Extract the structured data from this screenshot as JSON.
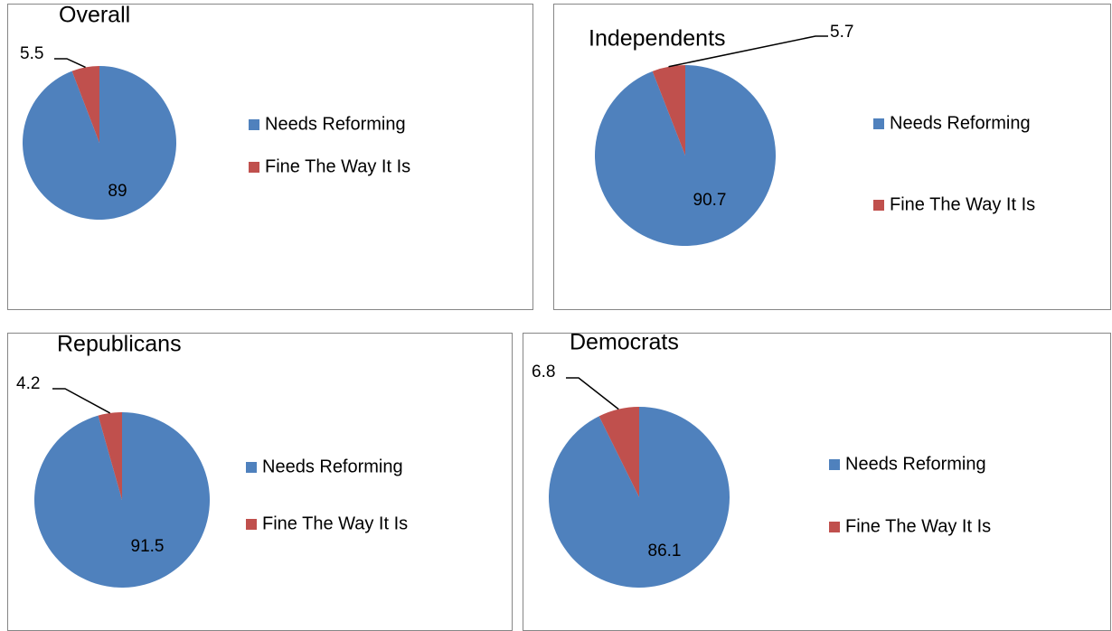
{
  "chart_data": [
    {
      "type": "pie",
      "title": "Overall",
      "categories": [
        "Needs Reforming",
        "Fine The Way It Is"
      ],
      "values": [
        89,
        5.5
      ],
      "colors": [
        "#4f81bd",
        "#c0504d"
      ]
    },
    {
      "type": "pie",
      "title": "Independents",
      "categories": [
        "Needs Reforming",
        "Fine The Way It Is"
      ],
      "values": [
        90.7,
        5.7
      ],
      "colors": [
        "#4f81bd",
        "#c0504d"
      ]
    },
    {
      "type": "pie",
      "title": "Republicans",
      "categories": [
        "Needs Reforming",
        "Fine The Way It Is"
      ],
      "values": [
        91.5,
        4.2
      ],
      "colors": [
        "#4f81bd",
        "#c0504d"
      ]
    },
    {
      "type": "pie",
      "title": "Democrats",
      "categories": [
        "Needs Reforming",
        "Fine The Way It Is"
      ],
      "values": [
        86.1,
        6.8
      ],
      "colors": [
        "#4f81bd",
        "#c0504d"
      ]
    }
  ]
}
